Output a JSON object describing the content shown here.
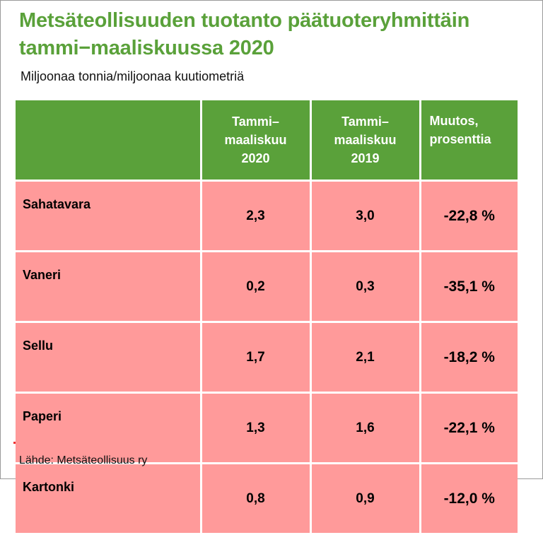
{
  "title": {
    "line1": "Metsäteollisuuden tuotanto päätuoteryhmittäin",
    "line2": "tammi−maaliskuussa 2020"
  },
  "subtitle": "Miljoonaa tonnia/miljoonaa kuutiometriä",
  "table": {
    "headers": [
      "",
      "Tammi–\nmaaliskuu\n2020",
      "Tammi–\nmaaliskuu\n2019",
      "Muutos,\nprosenttia"
    ],
    "rows": [
      {
        "product": "Sahatavara",
        "y2020": "2,3",
        "y2019": "3,0",
        "change": "-22,8 %"
      },
      {
        "product": "Vaneri",
        "y2020": "0,2",
        "y2019": "0,3",
        "change": "-35,1 %"
      },
      {
        "product": "Sellu",
        "y2020": "1,7",
        "y2019": "2,1",
        "change": "-18,2 %"
      },
      {
        "product": "Paperi",
        "y2020": "1,3",
        "y2019": "1,6",
        "change": "-22,1 %"
      },
      {
        "product": "Kartonki",
        "y2020": "0,8",
        "y2019": "0,9",
        "change": "-12,0 %"
      }
    ]
  },
  "source": "Lähde: Metsäteollisuus ry",
  "colors": {
    "title_green": "#5aa13a",
    "header_green": "#5aa13a",
    "row_pink": "#ff9a9a"
  }
}
